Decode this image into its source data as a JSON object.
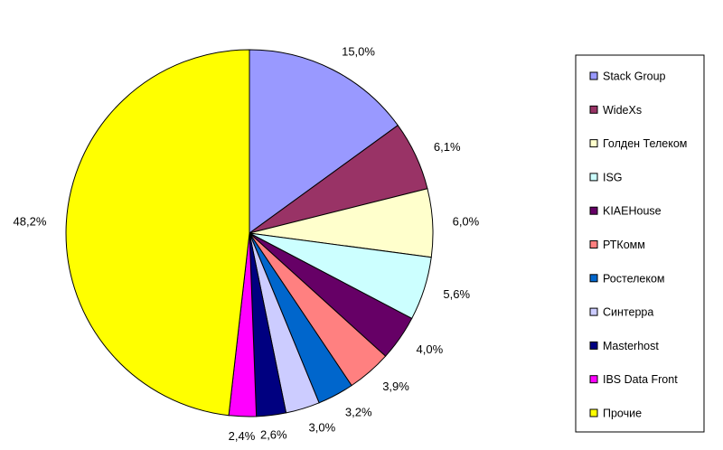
{
  "chart_data": {
    "type": "pie",
    "slices": [
      {
        "name": "Stack Group",
        "value": 15.0,
        "label": "15,0%",
        "color": "#9999ff"
      },
      {
        "name": "WideXs",
        "value": 6.1,
        "label": "6,1%",
        "color": "#993366"
      },
      {
        "name": "Голден Телеком",
        "value": 6.0,
        "label": "6,0%",
        "color": "#ffffcc"
      },
      {
        "name": "ISG",
        "value": 5.6,
        "label": "5,6%",
        "color": "#ccffff"
      },
      {
        "name": "KIAEHouse",
        "value": 4.0,
        "label": "4,0%",
        "color": "#660066"
      },
      {
        "name": "РТКомм",
        "value": 3.9,
        "label": "3,9%",
        "color": "#ff8080"
      },
      {
        "name": "Ростелеком",
        "value": 3.2,
        "label": "3,2%",
        "color": "#0066cc"
      },
      {
        "name": "Синтерра",
        "value": 3.0,
        "label": "3,0%",
        "color": "#ccccff"
      },
      {
        "name": "Masterhost",
        "value": 2.6,
        "label": "2,6%",
        "color": "#000080"
      },
      {
        "name": "IBS Data Front",
        "value": 2.4,
        "label": "2,4%",
        "color": "#ff00ff"
      },
      {
        "name": "Прочие",
        "value": 48.2,
        "label": "48,2%",
        "color": "#ffff00"
      }
    ],
    "legend_position": "right"
  }
}
